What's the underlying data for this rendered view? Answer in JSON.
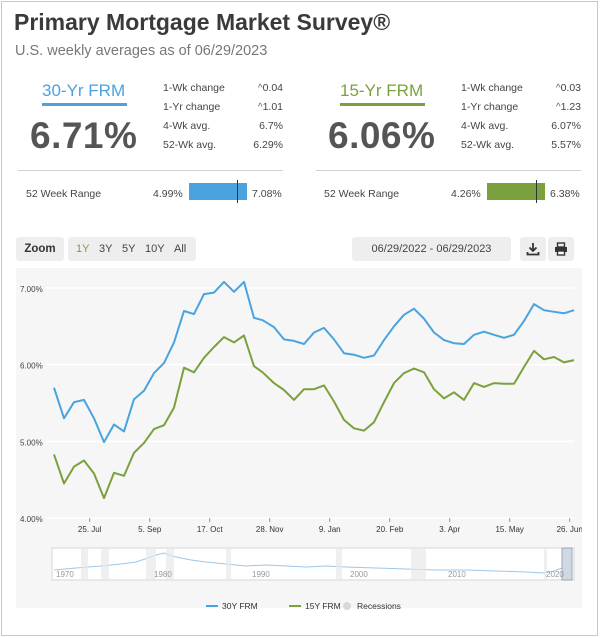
{
  "header": {
    "title": "Primary Mortgage Market Survey®",
    "subtitle": "U.S. weekly averages as of 06/29/2023"
  },
  "products": [
    {
      "name": "30-Yr FRM",
      "color": "#4aa3df",
      "rate": "6.71%",
      "stats": [
        {
          "label": "1-Wk change",
          "value": "0.04",
          "caret": true
        },
        {
          "label": "1-Yr change",
          "value": "1.01",
          "caret": true
        },
        {
          "label": "4-Wk avg.",
          "value": "6.7%",
          "caret": false
        },
        {
          "label": "52-Wk avg.",
          "value": "6.29%",
          "caret": false
        }
      ],
      "range_label": "52 Week Range",
      "range_low": "4.99%",
      "range_high": "7.08%",
      "range_current_fraction": 0.82
    },
    {
      "name": "15-Yr FRM",
      "color": "#7aa13d",
      "rate": "6.06%",
      "stats": [
        {
          "label": "1-Wk change",
          "value": "0.03",
          "caret": true
        },
        {
          "label": "1-Yr change",
          "value": "1.23",
          "caret": true
        },
        {
          "label": "4-Wk avg.",
          "value": "6.07%",
          "caret": false
        },
        {
          "label": "52-Wk avg.",
          "value": "5.57%",
          "caret": false
        }
      ],
      "range_label": "52 Week Range",
      "range_low": "4.26%",
      "range_high": "6.38%",
      "range_current_fraction": 0.85
    }
  ],
  "toolbar": {
    "zoom_label": "Zoom",
    "zoom_options": [
      "1Y",
      "3Y",
      "5Y",
      "10Y",
      "All"
    ],
    "zoom_selected": "1Y",
    "date_range": "06/29/2022 - 06/29/2023",
    "download_icon": "download-icon",
    "print_icon": "print-icon"
  },
  "chart_data": {
    "type": "line",
    "title": "",
    "xlabel": "",
    "ylabel": "",
    "y_ticks": [
      "4.00%",
      "5.00%",
      "6.00%",
      "7.00%"
    ],
    "ylim": [
      4.0,
      7.0
    ],
    "x_ticks": [
      "25. Jul",
      "5. Sep",
      "17. Oct",
      "28. Nov",
      "9. Jan",
      "20. Feb",
      "3. Apr",
      "15. May",
      "26. Jun"
    ],
    "xlim": [
      "2022-06-30",
      "2023-06-29"
    ],
    "grid": "horizontal",
    "series": [
      {
        "name": "30Y FRM",
        "color": "#4aa3df",
        "x": [
          "2022-06-30",
          "2022-07-07",
          "2022-07-14",
          "2022-07-21",
          "2022-07-28",
          "2022-08-04",
          "2022-08-11",
          "2022-08-18",
          "2022-08-25",
          "2022-09-01",
          "2022-09-08",
          "2022-09-15",
          "2022-09-22",
          "2022-09-29",
          "2022-10-06",
          "2022-10-13",
          "2022-10-20",
          "2022-10-27",
          "2022-11-03",
          "2022-11-10",
          "2022-11-17",
          "2022-11-23",
          "2022-12-01",
          "2022-12-08",
          "2022-12-15",
          "2022-12-22",
          "2022-12-29",
          "2023-01-05",
          "2023-01-12",
          "2023-01-19",
          "2023-01-26",
          "2023-02-02",
          "2023-02-09",
          "2023-02-16",
          "2023-02-23",
          "2023-03-02",
          "2023-03-09",
          "2023-03-16",
          "2023-03-23",
          "2023-03-30",
          "2023-04-06",
          "2023-04-13",
          "2023-04-20",
          "2023-04-27",
          "2023-05-04",
          "2023-05-11",
          "2023-05-18",
          "2023-05-25",
          "2023-06-01",
          "2023-06-08",
          "2023-06-15",
          "2023-06-22",
          "2023-06-29"
        ],
        "values": [
          5.7,
          5.3,
          5.51,
          5.54,
          5.3,
          4.99,
          5.22,
          5.13,
          5.55,
          5.66,
          5.89,
          6.02,
          6.29,
          6.7,
          6.66,
          6.92,
          6.94,
          7.08,
          6.95,
          7.08,
          6.61,
          6.58,
          6.49,
          6.33,
          6.31,
          6.27,
          6.42,
          6.48,
          6.33,
          6.15,
          6.13,
          6.09,
          6.12,
          6.32,
          6.5,
          6.65,
          6.73,
          6.6,
          6.42,
          6.32,
          6.28,
          6.27,
          6.39,
          6.43,
          6.39,
          6.35,
          6.39,
          6.57,
          6.79,
          6.71,
          6.69,
          6.67,
          6.71
        ]
      },
      {
        "name": "15Y FRM",
        "color": "#7aa13d",
        "x": [
          "2022-06-30",
          "2022-07-07",
          "2022-07-14",
          "2022-07-21",
          "2022-07-28",
          "2022-08-04",
          "2022-08-11",
          "2022-08-18",
          "2022-08-25",
          "2022-09-01",
          "2022-09-08",
          "2022-09-15",
          "2022-09-22",
          "2022-09-29",
          "2022-10-06",
          "2022-10-13",
          "2022-10-20",
          "2022-10-27",
          "2022-11-03",
          "2022-11-10",
          "2022-11-17",
          "2022-11-23",
          "2022-12-01",
          "2022-12-08",
          "2022-12-15",
          "2022-12-22",
          "2022-12-29",
          "2023-01-05",
          "2023-01-12",
          "2023-01-19",
          "2023-01-26",
          "2023-02-02",
          "2023-02-09",
          "2023-02-16",
          "2023-02-23",
          "2023-03-02",
          "2023-03-09",
          "2023-03-16",
          "2023-03-23",
          "2023-03-30",
          "2023-04-06",
          "2023-04-13",
          "2023-04-20",
          "2023-04-27",
          "2023-05-04",
          "2023-05-11",
          "2023-05-18",
          "2023-05-25",
          "2023-06-01",
          "2023-06-08",
          "2023-06-15",
          "2023-06-22",
          "2023-06-29"
        ],
        "values": [
          4.83,
          4.45,
          4.67,
          4.75,
          4.58,
          4.26,
          4.59,
          4.55,
          4.85,
          4.98,
          5.16,
          5.21,
          5.44,
          5.96,
          5.9,
          6.09,
          6.23,
          6.36,
          6.29,
          6.38,
          5.98,
          5.9,
          5.76,
          5.67,
          5.54,
          5.68,
          5.68,
          5.73,
          5.52,
          5.28,
          5.17,
          5.14,
          5.25,
          5.51,
          5.76,
          5.89,
          5.95,
          5.9,
          5.68,
          5.56,
          5.64,
          5.54,
          5.76,
          5.71,
          5.76,
          5.75,
          5.75,
          5.97,
          6.18,
          6.07,
          6.1,
          6.03,
          6.06
        ]
      }
    ],
    "navigator": {
      "x_ticks": [
        "1970",
        "1980",
        "1990",
        "2000",
        "2010",
        "2020"
      ]
    },
    "legend": {
      "placement": "bottom",
      "items": [
        {
          "name": "30Y FRM",
          "color": "#4aa3df"
        },
        {
          "name": "15Y FRM",
          "color": "#7aa13d"
        },
        {
          "name": "Recessions",
          "color": "#d8d8d8"
        }
      ]
    }
  }
}
